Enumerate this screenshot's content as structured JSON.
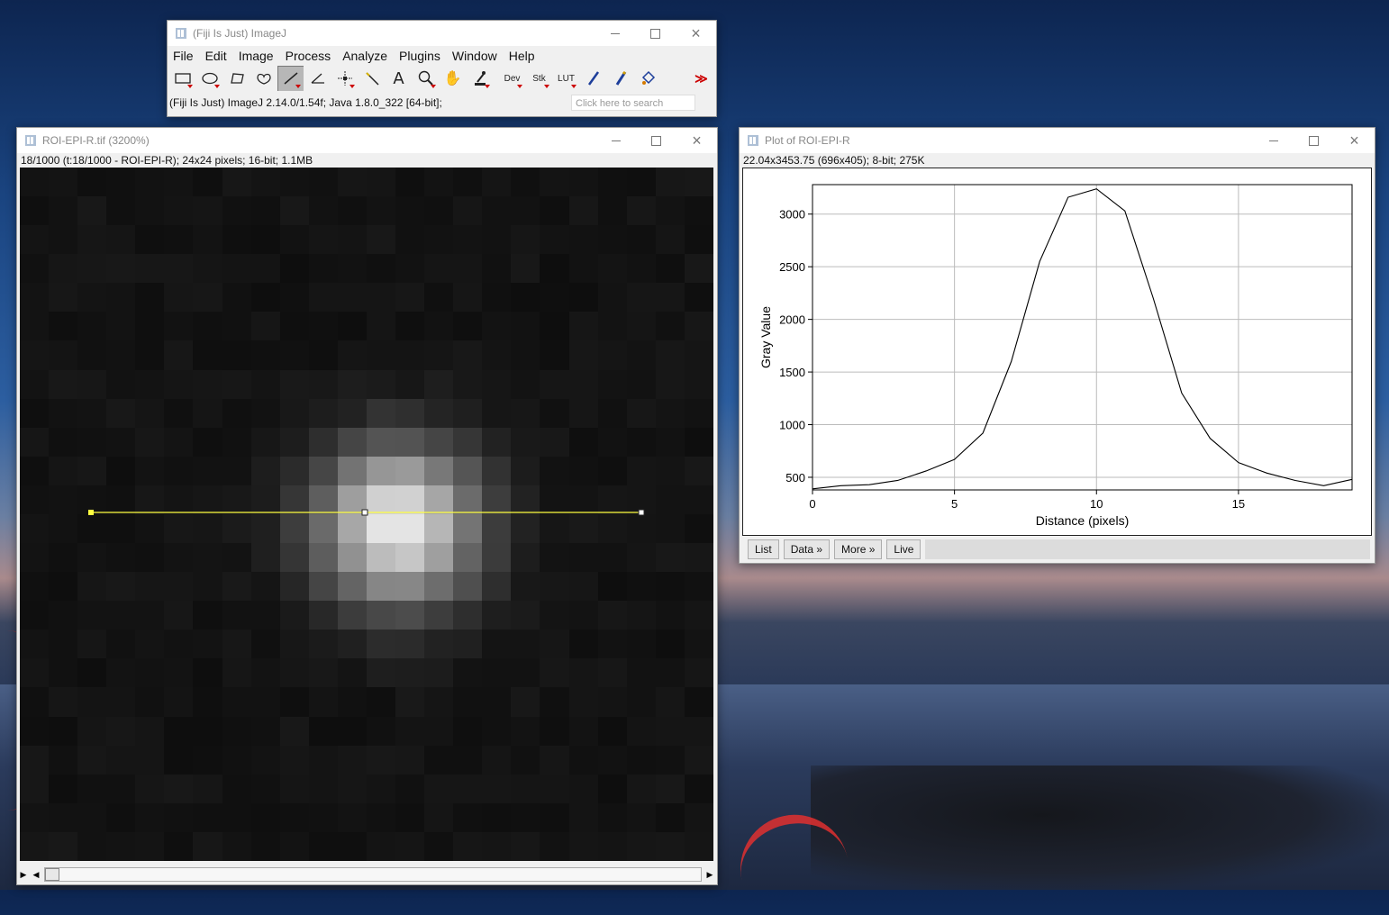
{
  "main_window": {
    "title": "(Fiji Is Just) ImageJ",
    "menus": [
      "File",
      "Edit",
      "Image",
      "Process",
      "Analyze",
      "Plugins",
      "Window",
      "Help"
    ],
    "tools": [
      {
        "name": "rectangle-tool-icon",
        "glyph": "▭"
      },
      {
        "name": "oval-tool-icon",
        "glyph": "◯"
      },
      {
        "name": "polygon-tool-icon",
        "glyph": "⬠"
      },
      {
        "name": "freehand-tool-icon",
        "glyph": "♡"
      },
      {
        "name": "line-tool-icon",
        "glyph": "╱"
      },
      {
        "name": "angle-tool-icon",
        "glyph": "∠"
      },
      {
        "name": "point-tool-icon",
        "glyph": "✛"
      },
      {
        "name": "wand-tool-icon",
        "glyph": "⟋"
      },
      {
        "name": "text-tool-icon",
        "glyph": "A"
      },
      {
        "name": "zoom-tool-icon",
        "glyph": "⚲"
      },
      {
        "name": "hand-tool-icon",
        "glyph": "✋"
      },
      {
        "name": "dropper-tool-icon",
        "glyph": "⌇"
      },
      {
        "name": "dev-tool",
        "glyph": "Dev"
      },
      {
        "name": "stk-tool",
        "glyph": "Stk"
      },
      {
        "name": "lut-tool",
        "glyph": "LUT"
      },
      {
        "name": "pencil-tool-icon",
        "glyph": "✎"
      },
      {
        "name": "brush-tool-icon",
        "glyph": "🖌"
      },
      {
        "name": "flood-fill-tool-icon",
        "glyph": "⛾"
      },
      {
        "name": "blank-tool",
        "glyph": ""
      },
      {
        "name": "more-tools-icon",
        "glyph": "≫"
      }
    ],
    "status": "(Fiji Is Just) ImageJ 2.14.0/1.54f; Java 1.8.0_322 [64-bit];",
    "search_placeholder": "Click here to search"
  },
  "image_window": {
    "title": "ROI-EPI-R.tif (3200%)",
    "info": "18/1000 (t:18/1000 - ROI-EPI-R); 24x24 pixels; 16-bit; 1.1MB"
  },
  "plot_window": {
    "title": "Plot of ROI-EPI-R",
    "info": "22.04x3453.75  (696x405); 8-bit; 275K",
    "buttons": {
      "list": "List",
      "data": "Data »",
      "more": "More »",
      "live": "Live"
    }
  },
  "chart_data": {
    "type": "line",
    "xlabel": "Distance (pixels)",
    "ylabel": "Gray Value",
    "xlim": [
      0,
      19
    ],
    "ylim": [
      380,
      3280
    ],
    "xticks": [
      0,
      5,
      10,
      15
    ],
    "yticks": [
      500,
      1000,
      1500,
      2000,
      2500,
      3000
    ],
    "grid": true,
    "series": [
      {
        "x": [
          0,
          1,
          2,
          3,
          4,
          5,
          6,
          7,
          8,
          9,
          10,
          11,
          12,
          13,
          14,
          15,
          16,
          17,
          18,
          19
        ],
        "values": [
          390,
          420,
          430,
          470,
          560,
          670,
          920,
          1600,
          2550,
          3160,
          3240,
          3030,
          2200,
          1300,
          870,
          640,
          540,
          470,
          420,
          480
        ]
      }
    ]
  }
}
